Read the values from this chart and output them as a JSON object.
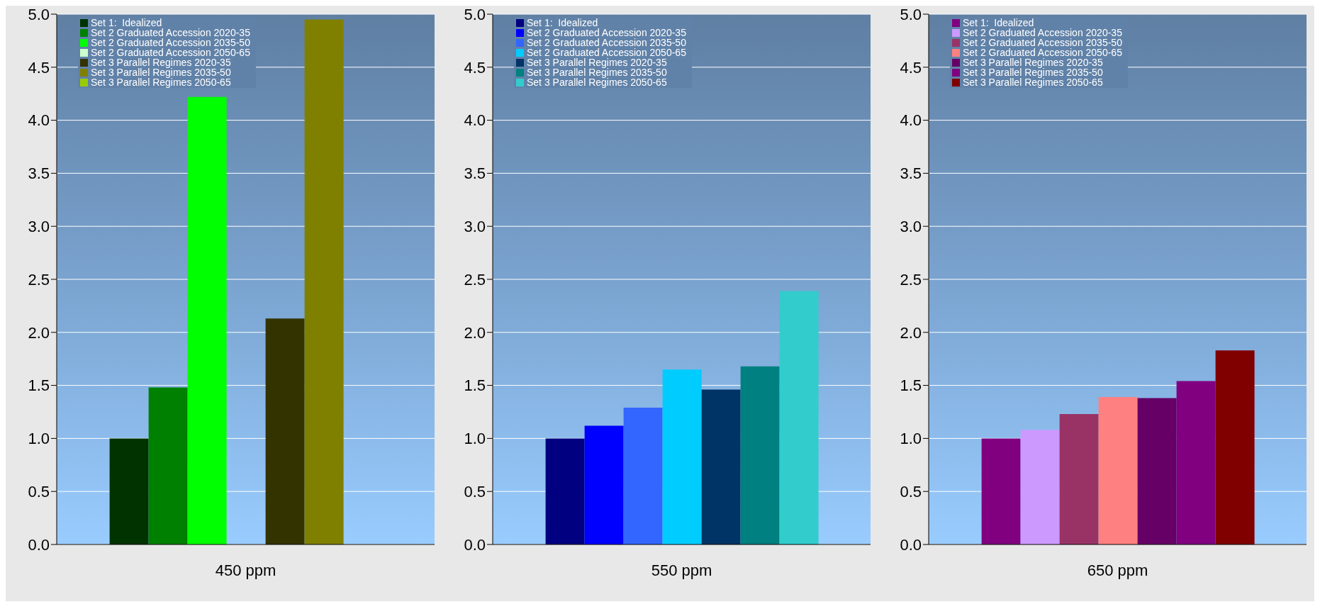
{
  "chart_data": [
    {
      "type": "bar",
      "categories": [
        "450 ppm"
      ],
      "ylim": [
        0,
        5
      ],
      "yticks": [
        {
          "value": 0,
          "label": "0.0"
        },
        {
          "value": 0.5,
          "label": "0.5"
        },
        {
          "value": 1,
          "label": "1.0"
        },
        {
          "value": 1.5,
          "label": "1.5"
        },
        {
          "value": 2,
          "label": "2.0"
        },
        {
          "value": 2.5,
          "label": "2.5"
        },
        {
          "value": 3,
          "label": "3.0"
        },
        {
          "value": 3.5,
          "label": "3.5"
        },
        {
          "value": 4,
          "label": "4.0"
        },
        {
          "value": 4.5,
          "label": "4.5"
        },
        {
          "value": 5,
          "label": "5.0"
        }
      ],
      "grid": "y",
      "legend": "top left",
      "series": [
        {
          "name": "Set 1:  Idealized",
          "color": "#003300",
          "values": [
            1.0
          ]
        },
        {
          "name": "Set 2 Graduated Accession 2020-35",
          "color": "#008000",
          "values": [
            1.48
          ]
        },
        {
          "name": "Set 2 Graduated Accession 2035-50",
          "color": "#00ff00",
          "values": [
            4.22
          ]
        },
        {
          "name": "Set 2 Graduated Accession 2050-65",
          "color": "#ccffcc",
          "values": [
            null
          ]
        },
        {
          "name": "Set 3 Parallel Regimes 2020-35",
          "color": "#333300",
          "values": [
            2.13
          ]
        },
        {
          "name": "Set 3 Parallel Regimes 2035-50",
          "color": "#808000",
          "values": [
            4.95
          ]
        },
        {
          "name": "Set 3 Parallel Regimes 2050-65",
          "color": "#99cc00",
          "values": [
            null
          ]
        }
      ]
    },
    {
      "type": "bar",
      "categories": [
        "550 ppm"
      ],
      "ylim": [
        0,
        5
      ],
      "yticks": [
        {
          "value": 0,
          "label": "0.0"
        },
        {
          "value": 0.5,
          "label": "0.5"
        },
        {
          "value": 1,
          "label": "1.0"
        },
        {
          "value": 1.5,
          "label": "1.5"
        },
        {
          "value": 2,
          "label": "2.0"
        },
        {
          "value": 2.5,
          "label": "2.5"
        },
        {
          "value": 3,
          "label": "3.0"
        },
        {
          "value": 3.5,
          "label": "3.5"
        },
        {
          "value": 4,
          "label": "4.0"
        },
        {
          "value": 4.5,
          "label": "4.5"
        },
        {
          "value": 5,
          "label": "5.0"
        }
      ],
      "grid": "y",
      "legend": "top left",
      "series": [
        {
          "name": "Set 1:  Idealized",
          "color": "#000080",
          "values": [
            1.0
          ]
        },
        {
          "name": "Set 2 Graduated Accession 2020-35",
          "color": "#0000ff",
          "values": [
            1.12
          ]
        },
        {
          "name": "Set 2 Graduated Accession 2035-50",
          "color": "#3366ff",
          "values": [
            1.29
          ]
        },
        {
          "name": "Set 2 Graduated Accession 2050-65",
          "color": "#00ccff",
          "values": [
            1.65
          ]
        },
        {
          "name": "Set 3 Parallel Regimes 2020-35",
          "color": "#003366",
          "values": [
            1.46
          ]
        },
        {
          "name": "Set 3 Parallel Regimes 2035-50",
          "color": "#008080",
          "values": [
            1.68
          ]
        },
        {
          "name": "Set 3 Parallel Regimes 2050-65",
          "color": "#33cccc",
          "values": [
            2.39
          ]
        }
      ]
    },
    {
      "type": "bar",
      "categories": [
        "650 ppm"
      ],
      "ylim": [
        0,
        5
      ],
      "yticks": [
        {
          "value": 0,
          "label": "0.0"
        },
        {
          "value": 0.5,
          "label": "0.5"
        },
        {
          "value": 1,
          "label": "1.0"
        },
        {
          "value": 1.5,
          "label": "1.5"
        },
        {
          "value": 2,
          "label": "2.0"
        },
        {
          "value": 2.5,
          "label": "2.5"
        },
        {
          "value": 3,
          "label": "3.0"
        },
        {
          "value": 3.5,
          "label": "3.5"
        },
        {
          "value": 4,
          "label": "4.0"
        },
        {
          "value": 4.5,
          "label": "4.5"
        },
        {
          "value": 5,
          "label": "5.0"
        }
      ],
      "grid": "y",
      "legend": "top left",
      "series": [
        {
          "name": "Set 1:  Idealized",
          "color": "#800080",
          "values": [
            1.0
          ]
        },
        {
          "name": "Set 2 Graduated Accession 2020-35",
          "color": "#cc99ff",
          "values": [
            1.08
          ]
        },
        {
          "name": "Set 2 Graduated Accession 2035-50",
          "color": "#993366",
          "values": [
            1.23
          ]
        },
        {
          "name": "Set 2 Graduated Accession 2050-65",
          "color": "#ff8080",
          "values": [
            1.39
          ]
        },
        {
          "name": "Set 3 Parallel Regimes 2020-35",
          "color": "#660066",
          "values": [
            1.38
          ]
        },
        {
          "name": "Set 3 Parallel Regimes 2035-50",
          "color": "#800080",
          "values": [
            1.54
          ]
        },
        {
          "name": "Set 3 Parallel Regimes 2050-65",
          "color": "#800000",
          "values": [
            1.83
          ]
        }
      ]
    }
  ]
}
